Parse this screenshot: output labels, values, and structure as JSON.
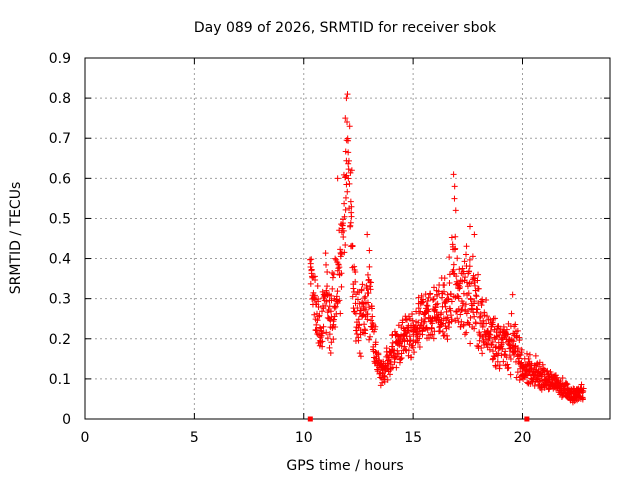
{
  "chart_data": {
    "type": "scatter",
    "title": "Day 089 of 2026, SRMTID for receiver sbok",
    "xlabel": "GPS time / hours",
    "ylabel": "SRMTID / TECUs",
    "xlim": [
      0,
      24
    ],
    "ylim": [
      0,
      0.9
    ],
    "x_ticks": [
      0,
      5,
      10,
      15,
      20
    ],
    "x_tick_labels": [
      "0",
      "5",
      "10",
      "15",
      "20"
    ],
    "y_ticks": [
      0,
      0.1,
      0.2,
      0.3,
      0.4,
      0.5,
      0.6,
      0.7,
      0.8,
      0.9
    ],
    "y_tick_labels": [
      "0",
      "0.1",
      "0.2",
      "0.3",
      "0.4",
      "0.5",
      "0.6",
      "0.7",
      "0.8",
      "0.9"
    ],
    "grid": true,
    "marker": "+",
    "series_color": "#ff0000",
    "series": [
      {
        "name": "SRMTID",
        "envelope": [
          {
            "x": 10.3,
            "y": 0.4,
            "spread": 0.05
          },
          {
            "x": 10.5,
            "y": 0.28,
            "spread": 0.07
          },
          {
            "x": 10.8,
            "y": 0.22,
            "spread": 0.07
          },
          {
            "x": 11.0,
            "y": 0.32,
            "spread": 0.09
          },
          {
            "x": 11.2,
            "y": 0.26,
            "spread": 0.08
          },
          {
            "x": 11.5,
            "y": 0.3,
            "spread": 0.09
          },
          {
            "x": 11.7,
            "y": 0.4,
            "spread": 0.12
          },
          {
            "x": 11.9,
            "y": 0.55,
            "spread": 0.15
          },
          {
            "x": 12.0,
            "y": 0.68,
            "spread": 0.12
          },
          {
            "x": 12.15,
            "y": 0.55,
            "spread": 0.16
          },
          {
            "x": 12.3,
            "y": 0.3,
            "spread": 0.12
          },
          {
            "x": 12.5,
            "y": 0.24,
            "spread": 0.08
          },
          {
            "x": 12.8,
            "y": 0.26,
            "spread": 0.08
          },
          {
            "x": 13.0,
            "y": 0.3,
            "spread": 0.1
          },
          {
            "x": 13.2,
            "y": 0.2,
            "spread": 0.05
          },
          {
            "x": 13.5,
            "y": 0.11,
            "spread": 0.03
          },
          {
            "x": 13.8,
            "y": 0.13,
            "spread": 0.04
          },
          {
            "x": 14.2,
            "y": 0.18,
            "spread": 0.05
          },
          {
            "x": 14.6,
            "y": 0.21,
            "spread": 0.05
          },
          {
            "x": 15.0,
            "y": 0.21,
            "spread": 0.05
          },
          {
            "x": 15.4,
            "y": 0.25,
            "spread": 0.06
          },
          {
            "x": 15.8,
            "y": 0.25,
            "spread": 0.06
          },
          {
            "x": 16.2,
            "y": 0.27,
            "spread": 0.07
          },
          {
            "x": 16.6,
            "y": 0.28,
            "spread": 0.08
          },
          {
            "x": 16.9,
            "y": 0.4,
            "spread": 0.16
          },
          {
            "x": 17.1,
            "y": 0.28,
            "spread": 0.09
          },
          {
            "x": 17.5,
            "y": 0.32,
            "spread": 0.11
          },
          {
            "x": 17.8,
            "y": 0.3,
            "spread": 0.1
          },
          {
            "x": 18.2,
            "y": 0.22,
            "spread": 0.08
          },
          {
            "x": 18.7,
            "y": 0.19,
            "spread": 0.06
          },
          {
            "x": 19.2,
            "y": 0.18,
            "spread": 0.06
          },
          {
            "x": 19.6,
            "y": 0.2,
            "spread": 0.08
          },
          {
            "x": 20.0,
            "y": 0.13,
            "spread": 0.04
          },
          {
            "x": 20.5,
            "y": 0.12,
            "spread": 0.04
          },
          {
            "x": 21.0,
            "y": 0.1,
            "spread": 0.03
          },
          {
            "x": 21.5,
            "y": 0.09,
            "spread": 0.03
          },
          {
            "x": 22.0,
            "y": 0.07,
            "spread": 0.02
          },
          {
            "x": 22.4,
            "y": 0.06,
            "spread": 0.02
          },
          {
            "x": 22.8,
            "y": 0.07,
            "spread": 0.02
          }
        ],
        "peaks": [
          {
            "x": 12.0,
            "y": 0.81
          },
          {
            "x": 11.95,
            "y": 0.8
          },
          {
            "x": 11.9,
            "y": 0.75
          },
          {
            "x": 12.1,
            "y": 0.73
          },
          {
            "x": 12.2,
            "y": 0.62
          },
          {
            "x": 11.55,
            "y": 0.6
          },
          {
            "x": 16.85,
            "y": 0.61
          },
          {
            "x": 16.9,
            "y": 0.58
          },
          {
            "x": 16.95,
            "y": 0.52
          },
          {
            "x": 17.6,
            "y": 0.48
          },
          {
            "x": 17.8,
            "y": 0.46
          },
          {
            "x": 12.9,
            "y": 0.46
          },
          {
            "x": 13.0,
            "y": 0.42
          },
          {
            "x": 19.55,
            "y": 0.31
          }
        ],
        "axis_markers": [
          {
            "x": 10.3,
            "y": 0.0
          },
          {
            "x": 20.2,
            "y": 0.0
          }
        ]
      }
    ]
  }
}
